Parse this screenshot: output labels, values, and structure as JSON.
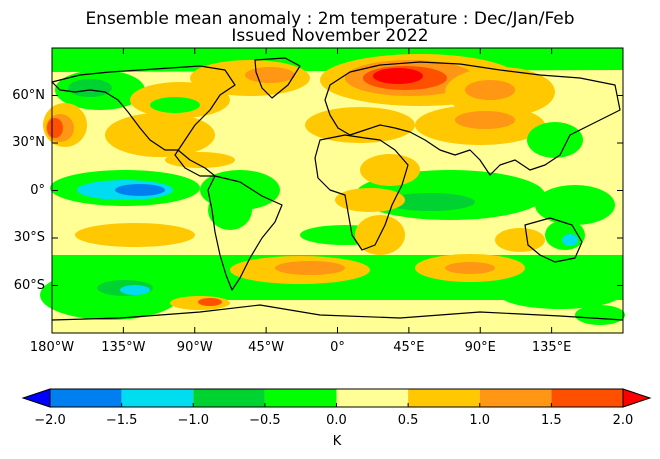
{
  "title": "Ensemble mean anomaly : 2m temperature : Dec/Jan/Feb",
  "subtitle": "Issued November 2022",
  "map": {
    "lat_labels": [
      {
        "text": "60°N",
        "lat": 60
      },
      {
        "text": "30°N",
        "lat": 30
      },
      {
        "text": "0°",
        "lat": 0
      },
      {
        "text": "30°S",
        "lat": -30
      },
      {
        "text": "60°S",
        "lat": -60
      }
    ],
    "lon_labels": [
      {
        "text": "180°W",
        "lon": -180
      },
      {
        "text": "135°W",
        "lon": -135
      },
      {
        "text": "90°W",
        "lon": -90
      },
      {
        "text": "45°W",
        "lon": -45
      },
      {
        "text": "0°",
        "lon": 0
      },
      {
        "text": "45°E",
        "lon": 45
      },
      {
        "text": "90°E",
        "lon": 90
      },
      {
        "text": "135°E",
        "lon": 135
      }
    ],
    "lon_range": [
      -180,
      180
    ],
    "lat_range": [
      -90,
      90
    ]
  },
  "colorbar": {
    "ticks": [
      "−2.0",
      "−1.5",
      "−1.0",
      "−0.5",
      "0.0",
      "0.5",
      "1.0",
      "1.5",
      "2.0"
    ],
    "colors": [
      "#0000ff",
      "#0080f0",
      "#00dcf0",
      "#00d232",
      "#00ff00",
      "#ffff96",
      "#ffc800",
      "#ff9614",
      "#ff5000",
      "#ff0000"
    ],
    "unit": "K"
  }
}
